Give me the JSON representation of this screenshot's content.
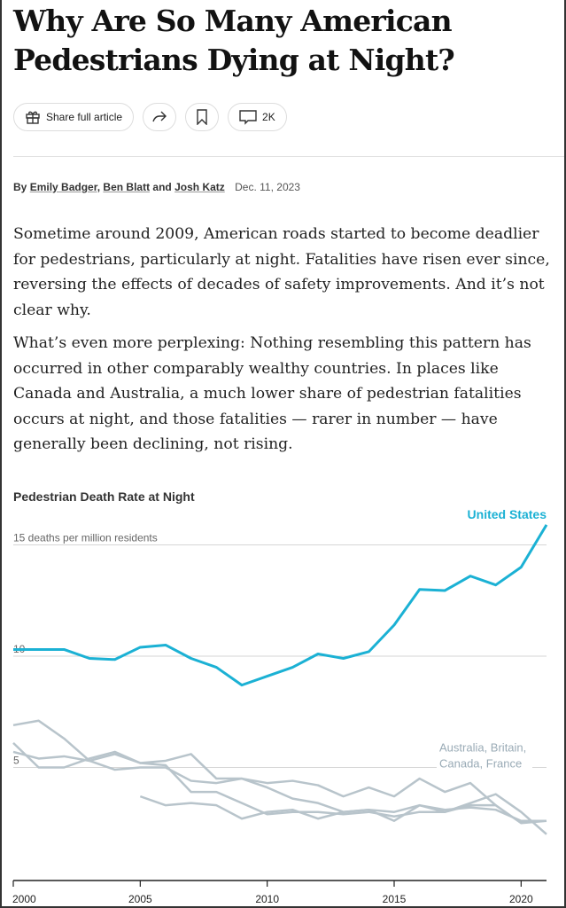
{
  "article": {
    "title": "Why Are So Many American Pedestrians Dying at Night?",
    "actions": {
      "share_label": "Share full article",
      "comments_count": "2K"
    },
    "byline": {
      "prefix": "By",
      "authors": [
        "Emily Badger",
        "Ben Blatt",
        "Josh Katz"
      ],
      "sep1": ",",
      "and": "and",
      "date": "Dec. 11, 2023"
    },
    "paragraphs": [
      "Sometime around 2009, American roads started to become deadlier for pedestrians, particularly at night. Fatalities have risen ever since, reversing the effects of decades of safety improvements. And it’s not clear why.",
      "What’s even more perplexing: Nothing resembling this pattern has occurred in other comparably wealthy countries. In places like Canada and Australia, a much lower share of pedestrian fatalities occurs at night, and those fatalities — rarer in number — have generally been declining, not rising."
    ]
  },
  "chart_data": {
    "type": "line",
    "title": "Pedestrian Death Rate at Night",
    "ylabel": "15 deaths per million residents",
    "ylim": [
      0,
      16
    ],
    "yticks": [
      {
        "value": 15,
        "label": "15 deaths per million residents"
      },
      {
        "value": 10,
        "label": "10"
      },
      {
        "value": 5,
        "label": "5"
      }
    ],
    "xlim": [
      2000,
      2021
    ],
    "xticks": [
      2000,
      2005,
      2010,
      2015,
      2020
    ],
    "grid": true,
    "colors": {
      "highlight": "#1bb1d4",
      "others": "#b8c4cb",
      "label_others": "#9aabb6"
    },
    "highlight_label": "United States",
    "others_label": [
      "Australia, Britain,",
      "Canada, France"
    ],
    "series": [
      {
        "name": "United States",
        "highlight": true,
        "x": [
          2000,
          2001,
          2002,
          2003,
          2004,
          2005,
          2006,
          2007,
          2008,
          2009,
          2010,
          2011,
          2012,
          2013,
          2014,
          2015,
          2016,
          2017,
          2018,
          2019,
          2020,
          2021
        ],
        "values": [
          10.3,
          10.3,
          10.3,
          9.9,
          9.85,
          10.4,
          10.5,
          9.9,
          9.5,
          8.7,
          9.1,
          9.5,
          10.1,
          9.9,
          10.2,
          11.4,
          13.0,
          12.95,
          13.6,
          13.2,
          14.0,
          15.9
        ]
      },
      {
        "x": [
          2000,
          2001,
          2002,
          2003,
          2004,
          2005,
          2006,
          2007,
          2008,
          2009,
          2010,
          2011,
          2012,
          2013,
          2014,
          2015,
          2016,
          2017,
          2018,
          2019
        ],
        "values": [
          6.9,
          7.1,
          6.3,
          5.3,
          5.6,
          5.2,
          5.3,
          5.6,
          4.5,
          4.5,
          4.3,
          4.4,
          4.2,
          3.7,
          4.1,
          3.7,
          4.5,
          3.9,
          4.3,
          3.3
        ]
      },
      {
        "x": [
          2000,
          2001,
          2002,
          2003,
          2004,
          2005,
          2006,
          2007,
          2008,
          2009,
          2010,
          2011,
          2012,
          2013,
          2014,
          2015,
          2016,
          2017,
          2018,
          2019,
          2020,
          2021
        ],
        "values": [
          6.1,
          5.0,
          5.0,
          5.4,
          5.7,
          5.2,
          5.1,
          3.9,
          3.9,
          3.4,
          2.9,
          3.0,
          3.0,
          2.9,
          3.0,
          2.8,
          3.0,
          3.0,
          3.3,
          3.3,
          2.5,
          2.6
        ]
      },
      {
        "x": [
          2000,
          2001,
          2002,
          2003,
          2004,
          2005,
          2006,
          2007,
          2008,
          2009,
          2010,
          2011,
          2012,
          2013,
          2014,
          2015,
          2016,
          2017,
          2018,
          2019,
          2020,
          2021
        ],
        "values": [
          5.7,
          5.4,
          5.5,
          5.3,
          4.9,
          5.0,
          5.0,
          4.4,
          4.3,
          4.5,
          4.1,
          3.6,
          3.4,
          3.0,
          3.1,
          3.0,
          3.3,
          3.1,
          3.2,
          3.1,
          2.6,
          2.6
        ]
      },
      {
        "x": [
          2005,
          2006,
          2007,
          2008,
          2009,
          2010,
          2011,
          2012,
          2013,
          2014,
          2015,
          2016,
          2017,
          2018,
          2019,
          2020,
          2021
        ],
        "values": [
          3.7,
          3.3,
          3.4,
          3.3,
          2.7,
          3.0,
          3.1,
          2.7,
          3.0,
          3.1,
          2.6,
          3.3,
          3.0,
          3.4,
          3.8,
          3.0,
          2.0
        ]
      }
    ]
  }
}
